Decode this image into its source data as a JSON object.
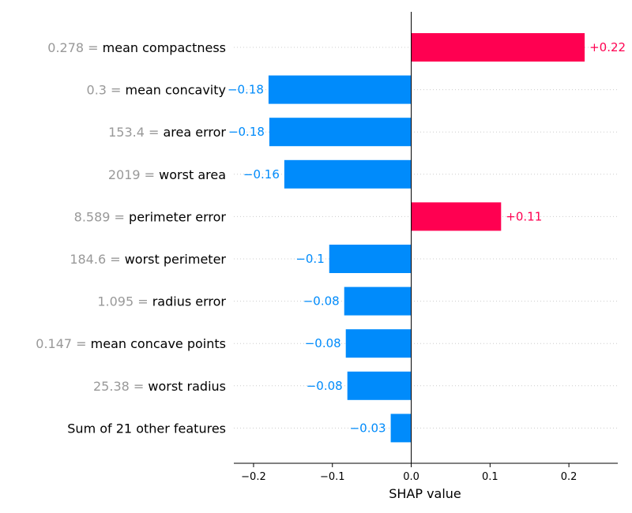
{
  "chart_data": {
    "type": "bar",
    "orientation": "horizontal",
    "title": "",
    "xlabel": "SHAP value",
    "ylabel": "",
    "xlim": [
      -0.225,
      0.262
    ],
    "grid": false,
    "legend": "none",
    "x_ticks": [
      {
        "value": -0.2,
        "label": "−0.2"
      },
      {
        "value": -0.1,
        "label": "−0.1"
      },
      {
        "value": 0.0,
        "label": "0.0"
      },
      {
        "value": 0.1,
        "label": "0.1"
      },
      {
        "value": 0.2,
        "label": "0.2"
      }
    ],
    "rows": [
      {
        "feature_value": "0.278 = ",
        "feature": "mean compactness",
        "value": 0.22,
        "label": "+0.22"
      },
      {
        "feature_value": "0.3 = ",
        "feature": "mean concavity",
        "value": -0.181,
        "label": "−0.18"
      },
      {
        "feature_value": "153.4 = ",
        "feature": "area error",
        "value": -0.18,
        "label": "−0.18"
      },
      {
        "feature_value": "2019 = ",
        "feature": "worst area",
        "value": -0.161,
        "label": "−0.16"
      },
      {
        "feature_value": "8.589 = ",
        "feature": "perimeter error",
        "value": 0.114,
        "label": "+0.11"
      },
      {
        "feature_value": "184.6 = ",
        "feature": "worst perimeter",
        "value": -0.104,
        "label": "−0.1"
      },
      {
        "feature_value": "1.095 = ",
        "feature": "radius error",
        "value": -0.085,
        "label": "−0.08"
      },
      {
        "feature_value": "0.147 = ",
        "feature": "mean concave points",
        "value": -0.083,
        "label": "−0.08"
      },
      {
        "feature_value": "25.38 = ",
        "feature": "worst radius",
        "value": -0.081,
        "label": "−0.08"
      },
      {
        "feature_value": "",
        "feature": "Sum of 21 other features",
        "value": -0.026,
        "label": "−0.03"
      }
    ],
    "colors": {
      "positive": "#ff0051",
      "negative": "#008bfb",
      "feature_value_text": "#999999",
      "gridline": "#cccccc"
    }
  }
}
